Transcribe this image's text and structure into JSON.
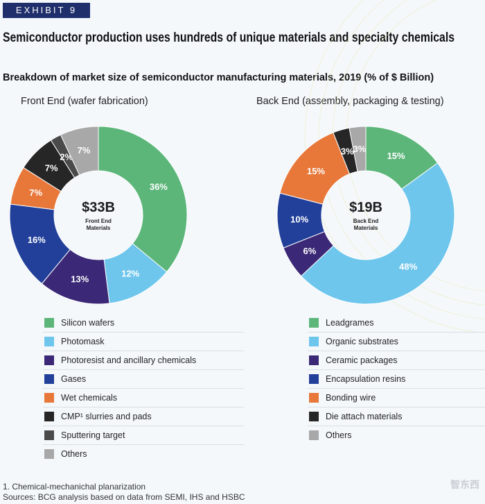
{
  "exhibit_label": "EXHIBIT 9",
  "headline": "Semiconductor production uses hundreds of unique materials and specialty chemicals",
  "subtitle": "Breakdown of market size of semiconductor manufacturing materials, 2019 (% of $ Billion)",
  "colors": {
    "green": "#5cb67a",
    "light_blue": "#6ec6ec",
    "purple": "#3b2877",
    "dark_blue": "#22409a",
    "orange": "#e8783a",
    "black": "#262626",
    "dark_gray": "#4a4a4a",
    "light_gray": "#a8a8a8"
  },
  "chart_data": [
    {
      "type": "pie",
      "title": "Front End (wafer fabrication)",
      "center_value": "$33B",
      "center_label": "Front End Materials",
      "slices": [
        {
          "label": "Silicon wafers",
          "value": 36,
          "display": "36%",
          "color": "#5cb67a"
        },
        {
          "label": "Photomask",
          "value": 12,
          "display": "12%",
          "color": "#6ec6ec"
        },
        {
          "label": "Photoresist and ancillary chemicals",
          "value": 13,
          "display": "13%",
          "color": "#3b2877"
        },
        {
          "label": "Gases",
          "value": 16,
          "display": "16%",
          "color": "#22409a"
        },
        {
          "label": "Wet chemicals",
          "value": 7,
          "display": "7%",
          "color": "#e8783a"
        },
        {
          "label": "CMP¹ slurries and pads",
          "value": 7,
          "display": "7%",
          "color": "#262626"
        },
        {
          "label": "Sputtering target",
          "value": 2,
          "display": "2%",
          "color": "#4a4a4a"
        },
        {
          "label": "Others",
          "value": 7,
          "display": "7%",
          "color": "#a8a8a8"
        }
      ]
    },
    {
      "type": "pie",
      "title": "Back End (assembly, packaging & testing)",
      "center_value": "$19B",
      "center_label": "Back End Materials",
      "slices": [
        {
          "label": "Leadgrames",
          "value": 15,
          "display": "15%",
          "color": "#5cb67a"
        },
        {
          "label": "Organic substrates",
          "value": 48,
          "display": "48%",
          "color": "#6ec6ec"
        },
        {
          "label": "Ceramic packages",
          "value": 6,
          "display": "6%",
          "color": "#3b2877"
        },
        {
          "label": "Encapsulation resins",
          "value": 10,
          "display": "10%",
          "color": "#22409a"
        },
        {
          "label": "Bonding wire",
          "value": 15,
          "display": "15%",
          "color": "#e8783a"
        },
        {
          "label": "Die attach materials",
          "value": 3,
          "display": "3%",
          "color": "#262626"
        },
        {
          "label": "Others",
          "value": 3,
          "display": "3%",
          "color": "#a8a8a8"
        }
      ]
    }
  ],
  "footnote": {
    "note": "1. Chemical-mechanichal planarization",
    "sources": "Sources: BCG analysis based on data from SEMI, IHS and HSBC"
  },
  "brand_watermark": "智东西"
}
